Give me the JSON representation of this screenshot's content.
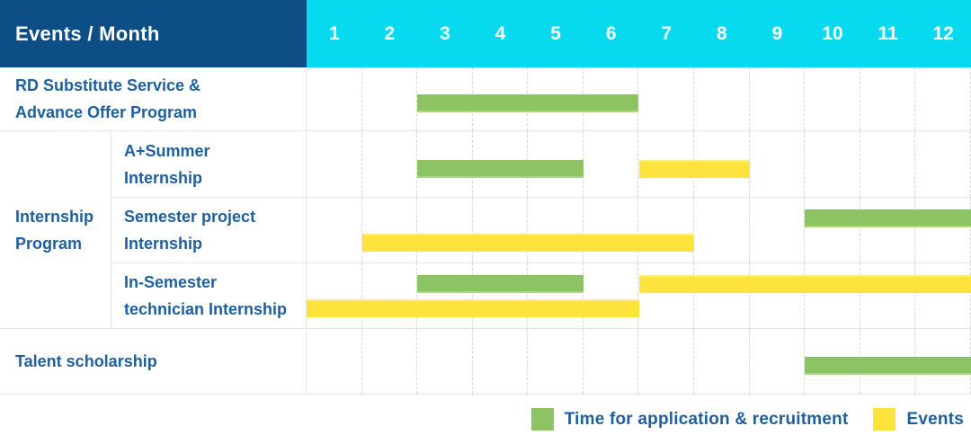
{
  "title_header": {
    "label": "Events / Month",
    "months": [
      "1",
      "2",
      "3",
      "4",
      "5",
      "6",
      "7",
      "8",
      "9",
      "10",
      "11",
      "12"
    ]
  },
  "group": {
    "label_lines": [
      "Internship",
      "Program"
    ]
  },
  "rows": [
    {
      "id": "rd-substitute-service",
      "label_lines": [
        "RD Substitute Service &",
        "Advance Offer Program"
      ],
      "bars": [
        {
          "type": "application",
          "start": 3,
          "end": 6,
          "lane": "mid"
        }
      ]
    },
    {
      "id": "a-plus-summer-internship",
      "label_lines": [
        "A+Summer",
        "Internship"
      ],
      "bars": [
        {
          "type": "application",
          "start": 3,
          "end": 5,
          "lane": "mid"
        },
        {
          "type": "event",
          "start": 7,
          "end": 8,
          "lane": "mid"
        }
      ]
    },
    {
      "id": "semester-project-internship",
      "label_lines": [
        "Semester project",
        "Internship"
      ],
      "bars": [
        {
          "type": "application",
          "start": 10,
          "end": 12,
          "lane": "top"
        },
        {
          "type": "event",
          "start": 2,
          "end": 7,
          "lane": "bottom"
        }
      ]
    },
    {
      "id": "in-semester-technician-internship",
      "label_lines": [
        "In-Semester",
        "technician Internship"
      ],
      "bars": [
        {
          "type": "application",
          "start": 3,
          "end": 5,
          "lane": "top"
        },
        {
          "type": "event",
          "start": 7,
          "end": 12,
          "lane": "top"
        },
        {
          "type": "event",
          "start": 1,
          "end": 6,
          "lane": "bottom"
        }
      ]
    },
    {
      "id": "talent-scholarship",
      "label_lines": [
        "Talent scholarship"
      ],
      "bars": [
        {
          "type": "application",
          "start": 10,
          "end": 12,
          "lane": "mid"
        }
      ]
    }
  ],
  "legend": {
    "items": [
      {
        "type": "application",
        "label": "Time for application & recruitment"
      },
      {
        "type": "event",
        "label": "Events"
      }
    ]
  },
  "colors": {
    "header_bg": "#0e4e86",
    "month_bg": "#07d9ef",
    "application_green": "#8dc463",
    "event_yellow": "#ffe33d",
    "label_text": "#1d5f9f",
    "grid_line": "#e4e4e4",
    "grid_dash": "#d9d9d9"
  },
  "chart_data": {
    "type": "table",
    "title": "Events / Month",
    "x_unit": "month",
    "x_range": [
      1,
      12
    ],
    "grid": true,
    "legend_position": "bottom-right",
    "legend": {
      "application": "Time for application & recruitment",
      "event": "Events"
    },
    "rows": [
      {
        "event": "RD Substitute Service & Advance Offer Program",
        "application_months": [
          [
            3,
            6
          ]
        ],
        "event_months": []
      },
      {
        "event": "Internship Program - A+Summer Internship",
        "application_months": [
          [
            3,
            5
          ]
        ],
        "event_months": [
          [
            7,
            8
          ]
        ]
      },
      {
        "event": "Internship Program - Semester project Internship",
        "application_months": [
          [
            10,
            12
          ]
        ],
        "event_months": [
          [
            2,
            7
          ]
        ]
      },
      {
        "event": "Internship Program - In-Semester technician Internship",
        "application_months": [
          [
            3,
            5
          ]
        ],
        "event_months": [
          [
            1,
            6
          ],
          [
            7,
            12
          ]
        ]
      },
      {
        "event": "Talent scholarship",
        "application_months": [
          [
            10,
            12
          ]
        ],
        "event_months": []
      }
    ]
  }
}
